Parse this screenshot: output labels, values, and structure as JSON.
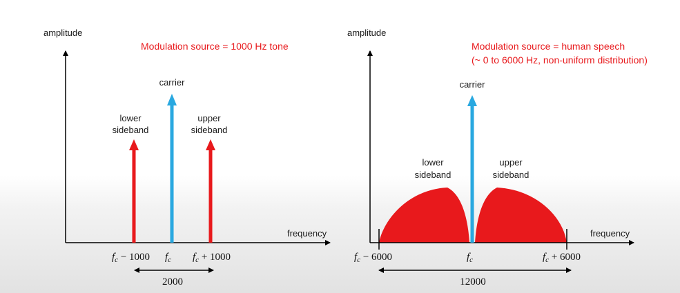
{
  "colors": {
    "sideband": "#e8191c",
    "carrier": "#29a8e0",
    "axis": "#000000",
    "title": "#e8191c"
  },
  "left_panel": {
    "y_axis_label": "amplitude",
    "x_axis_label": "frequency",
    "title": "Modulation source = 1000 Hz tone",
    "carrier_label": "carrier",
    "lower_label_line1": "lower",
    "lower_label_line2": "sideband",
    "upper_label_line1": "upper",
    "upper_label_line2": "sideband",
    "tick_lower_sym": "f",
    "tick_lower_sub": "c",
    "tick_lower_rest": " − 1000",
    "tick_center_sym": "f",
    "tick_center_sub": "c",
    "tick_upper_sym": "f",
    "tick_upper_sub": "c",
    "tick_upper_rest": " + 1000",
    "bandwidth": "2000"
  },
  "right_panel": {
    "y_axis_label": "amplitude",
    "x_axis_label": "frequency",
    "title_line1": "Modulation source = human speech",
    "title_line2": "(~ 0 to 6000 Hz, non-uniform distribution)",
    "carrier_label": "carrier",
    "lower_label_line1": "lower",
    "lower_label_line2": "sideband",
    "upper_label_line1": "upper",
    "upper_label_line2": "sideband",
    "tick_lower_sym": "f",
    "tick_lower_sub": "c",
    "tick_lower_rest": " − 6000",
    "tick_center_sym": "f",
    "tick_center_sub": "c",
    "tick_upper_sym": "f",
    "tick_upper_sub": "c",
    "tick_upper_rest": " + 6000",
    "bandwidth": "12000"
  }
}
